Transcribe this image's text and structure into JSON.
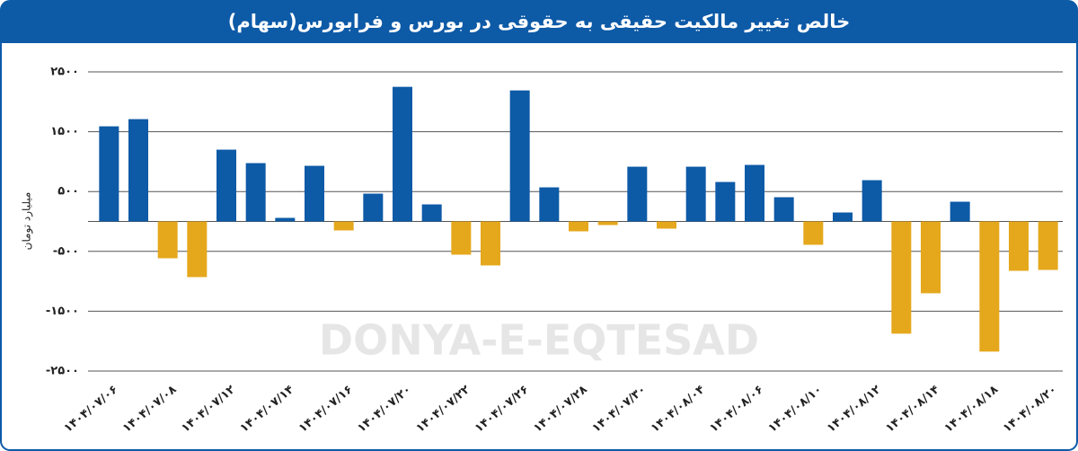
{
  "chart_data": {
    "type": "bar",
    "title": "خالص تغییر مالکیت حقیقی به حقوقی در بورس و فرابورس(سهام)",
    "y_label": "میلیارد تومان",
    "watermark": "DONYA-E-EQTESAD",
    "categories": [
      "۱۴۰۴/۰۷/۰۶",
      null,
      "۱۴۰۴/۰۷/۰۸",
      null,
      "۱۴۰۴/۰۷/۱۲",
      null,
      "۱۴۰۴/۰۷/۱۴",
      null,
      "۱۴۰۴/۰۷/۱۶",
      null,
      "۱۴۰۴/۰۷/۲۰",
      null,
      "۱۴۰۴/۰۷/۲۲",
      null,
      "۱۴۰۴/۰۷/۲۶",
      null,
      "۱۴۰۴/۰۷/۲۸",
      null,
      "۱۴۰۴/۰۷/۳۰",
      null,
      "۱۴۰۴/۰۸/۰۴",
      null,
      "۱۴۰۴/۰۸/۰۶",
      null,
      "۱۴۰۴/۰۸/۱۰",
      null,
      "۱۴۰۴/۰۸/۱۲",
      null,
      "۱۴۰۴/۰۸/۱۴",
      null,
      "۱۴۰۴/۰۸/۱۸",
      null,
      "۱۴۰۴/۰۸/۲۰"
    ],
    "values": [
      1590,
      1710,
      -615,
      -930,
      1200,
      975,
      60,
      930,
      -150,
      465,
      2250,
      285,
      -555,
      -735,
      2190,
      570,
      -165,
      -60,
      915,
      -120,
      915,
      660,
      945,
      405,
      -390,
      150,
      690,
      -1875,
      -1200,
      330,
      -2175,
      -825,
      -810
    ],
    "positive_color": "#0d5aa7",
    "negative_color": "#e5a81c",
    "ylim": [
      -2500,
      2500
    ],
    "yticks": [
      {
        "value": 2500,
        "label": "۲۵۰۰"
      },
      {
        "value": 1500,
        "label": "۱۵۰۰"
      },
      {
        "value": 500,
        "label": "۵۰۰"
      },
      {
        "value": -500,
        "label": "-۵۰۰"
      },
      {
        "value": -1500,
        "label": "-۱۵۰۰"
      },
      {
        "value": -2500,
        "label": "-۲۵۰۰"
      }
    ],
    "grid": true
  }
}
